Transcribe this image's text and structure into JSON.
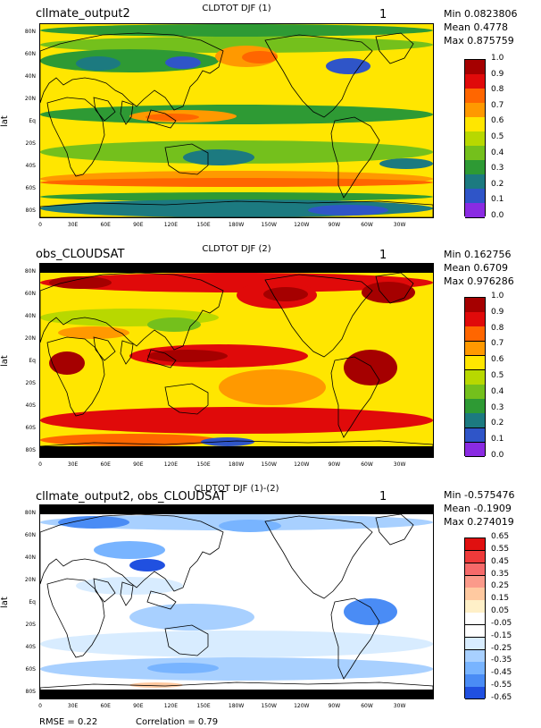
{
  "panels": [
    {
      "id": "p1",
      "name": "cllmate_output2",
      "title": "CLDTOT DJF (1)",
      "number": "1",
      "min": "Min 0.0823806",
      "mean": "Mean 0.4778",
      "max": "Max 0.875759",
      "ylabel": "lat",
      "colorbar": {
        "labels": [
          "1.0",
          "0.9",
          "0.8",
          "0.7",
          "0.6",
          "0.5",
          "0.4",
          "0.3",
          "0.2",
          "0.1",
          "0.0"
        ],
        "colors": [
          "#a50000",
          "#e00a0a",
          "#ff6600",
          "#ff9900",
          "#ffe600",
          "#b8d800",
          "#74c01c",
          "#2e9a34",
          "#1c7a80",
          "#2f55c8",
          "#8a2be2"
        ]
      }
    },
    {
      "id": "p2",
      "name": "obs_CLOUDSAT",
      "title": "CLDTOT DJF (2)",
      "number": "1",
      "min": "Min 0.162756",
      "mean": "Mean 0.6709",
      "max": "Max 0.976286",
      "ylabel": "lat",
      "colorbar": {
        "labels": [
          "1.0",
          "0.9",
          "0.8",
          "0.7",
          "0.6",
          "0.5",
          "0.4",
          "0.3",
          "0.2",
          "0.1",
          "0.0"
        ],
        "colors": [
          "#a50000",
          "#e00a0a",
          "#ff6600",
          "#ff9900",
          "#ffe600",
          "#b8d800",
          "#74c01c",
          "#2e9a34",
          "#1c7a80",
          "#2f55c8",
          "#8a2be2"
        ]
      }
    },
    {
      "id": "p3",
      "name": "cllmate_output2, obs_CLOUDSAT",
      "title": "CLDTOT DJF (1)-(2)",
      "number": "1",
      "min": "Min -0.575476",
      "mean": "Mean -0.1909",
      "max": "Max 0.274019",
      "ylabel": "lat",
      "colorbar": {
        "labels": [
          "0.65",
          "0.55",
          "0.45",
          "0.35",
          "0.25",
          "0.15",
          "0.05",
          "-0.05",
          "-0.15",
          "-0.25",
          "-0.35",
          "-0.45",
          "-0.55",
          "-0.65"
        ],
        "colors": [
          "#e01010",
          "#ee3a3a",
          "#f66a6a",
          "#fb9a8a",
          "#ffc9a0",
          "#fff0c8",
          "#ffffff",
          "#ffffff",
          "#d8ecff",
          "#a8d0ff",
          "#78b4ff",
          "#4a8cf5",
          "#2050e0"
        ]
      }
    }
  ],
  "axes": {
    "lat_ticks": [
      "80N",
      "60N",
      "40N",
      "20N",
      "Eq",
      "20S",
      "40S",
      "60S",
      "80S"
    ],
    "lon_ticks": [
      "0",
      "30E",
      "60E",
      "90E",
      "120E",
      "150E",
      "180W",
      "150W",
      "120W",
      "90W",
      "60W",
      "30W"
    ]
  },
  "footer": {
    "rmse": "RMSE = 0.22",
    "correlation": "Correlation = 0.79"
  }
}
